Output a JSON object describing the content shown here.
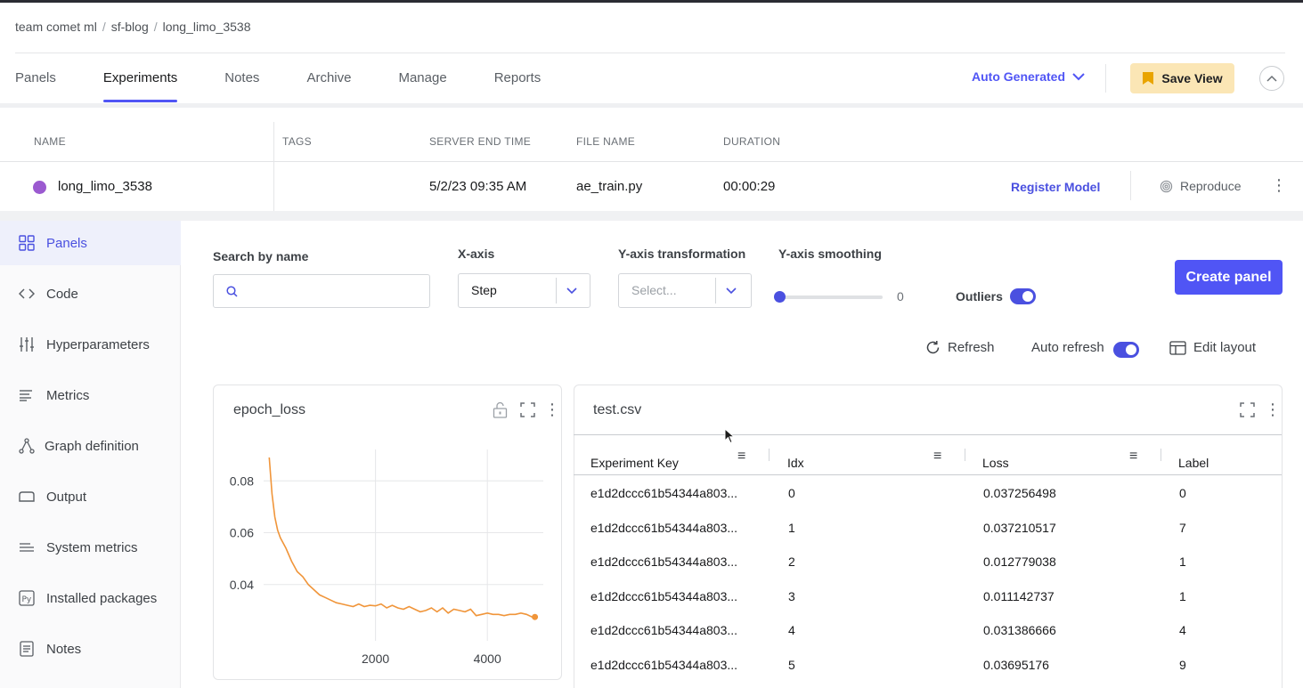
{
  "breadcrumb": [
    "team comet ml",
    "sf-blog",
    "long_limo_3538"
  ],
  "breadcrumb_sep": "/",
  "tabs": [
    "Panels",
    "Experiments",
    "Notes",
    "Archive",
    "Manage",
    "Reports"
  ],
  "active_tab": "Experiments",
  "view_selector": "Auto Generated",
  "save_view": "Save View",
  "experiments_table": {
    "columns": [
      "NAME",
      "TAGS",
      "SERVER END TIME",
      "FILE NAME",
      "DURATION"
    ],
    "row": {
      "name": "long_limo_3538",
      "tags": "",
      "server_end_time": "5/2/23 09:35 AM",
      "file_name": "ae_train.py",
      "duration": "00:00:29",
      "color": "#9b5ad0"
    },
    "register_model": "Register Model",
    "reproduce": "Reproduce"
  },
  "sidebar": {
    "items": [
      {
        "label": "Panels",
        "icon": "grid-icon"
      },
      {
        "label": "Code",
        "icon": "code-icon"
      },
      {
        "label": "Hyperparameters",
        "icon": "sliders-icon"
      },
      {
        "label": "Metrics",
        "icon": "list-icon"
      },
      {
        "label": "Graph definition",
        "icon": "graph-icon"
      },
      {
        "label": "Output",
        "icon": "output-icon"
      },
      {
        "label": "System metrics",
        "icon": "system-icon"
      },
      {
        "label": "Installed packages",
        "icon": "python-icon"
      },
      {
        "label": "Notes",
        "icon": "notes-icon"
      }
    ],
    "active": "Panels"
  },
  "filters": {
    "search_label": "Search by name",
    "search_value": "",
    "xaxis_label": "X-axis",
    "xaxis_value": "Step",
    "ytrans_label": "Y-axis transformation",
    "ytrans_placeholder": "Select...",
    "ysmooth_label": "Y-axis smoothing",
    "ysmooth_value": "0",
    "outliers_label": "Outliers",
    "outliers_on": true,
    "create_panel": "Create panel"
  },
  "actions": {
    "refresh": "Refresh",
    "auto_refresh": "Auto refresh",
    "auto_refresh_on": true,
    "edit_layout": "Edit layout"
  },
  "chart_data": {
    "type": "line",
    "title": "epoch_loss",
    "xlabel": "",
    "ylabel": "",
    "x_ticks": [
      2000,
      4000
    ],
    "y_ticks": [
      0.04,
      0.06,
      0.08
    ],
    "xlim": [
      0,
      5000
    ],
    "ylim": [
      0.0183,
      0.0921
    ],
    "grid": true,
    "color": "#f0953a",
    "series": [
      {
        "x": [
          100,
          150,
          200,
          250,
          300,
          400,
          500,
          600,
          700,
          800,
          900,
          1000,
          1100,
          1200,
          1300,
          1400,
          1500,
          1600,
          1700,
          1800,
          1900,
          2000,
          2100,
          2200,
          2300,
          2400,
          2500,
          2600,
          2700,
          2800,
          2900,
          3000,
          3100,
          3200,
          3300,
          3400,
          3500,
          3600,
          3700,
          3800,
          3900,
          4000,
          4100,
          4200,
          4300,
          4400,
          4500,
          4600,
          4700,
          4800,
          4850
        ],
        "y": [
          0.089,
          0.075,
          0.066,
          0.061,
          0.058,
          0.054,
          0.049,
          0.045,
          0.043,
          0.04,
          0.038,
          0.036,
          0.035,
          0.034,
          0.033,
          0.0325,
          0.032,
          0.0315,
          0.0325,
          0.0315,
          0.032,
          0.0318,
          0.0325,
          0.031,
          0.032,
          0.031,
          0.0305,
          0.0315,
          0.0305,
          0.0295,
          0.03,
          0.031,
          0.0295,
          0.031,
          0.029,
          0.0305,
          0.03,
          0.0295,
          0.0305,
          0.028,
          0.0285,
          0.029,
          0.0285,
          0.0285,
          0.028,
          0.0285,
          0.0285,
          0.029,
          0.0285,
          0.0275,
          0.0275
        ]
      }
    ]
  },
  "table_panel": {
    "title": "test.csv",
    "columns": [
      "Experiment Key",
      "Idx",
      "Loss",
      "Label"
    ],
    "rows": [
      [
        "e1d2dccc61b54344a803...",
        "0",
        "0.037256498",
        "0"
      ],
      [
        "e1d2dccc61b54344a803...",
        "1",
        "0.037210517",
        "7"
      ],
      [
        "e1d2dccc61b54344a803...",
        "2",
        "0.012779038",
        "1"
      ],
      [
        "e1d2dccc61b54344a803...",
        "3",
        "0.011142737",
        "1"
      ],
      [
        "e1d2dccc61b54344a803...",
        "4",
        "0.031386666",
        "4"
      ],
      [
        "e1d2dccc61b54344a803...",
        "5",
        "0.03695176",
        "9"
      ]
    ]
  }
}
